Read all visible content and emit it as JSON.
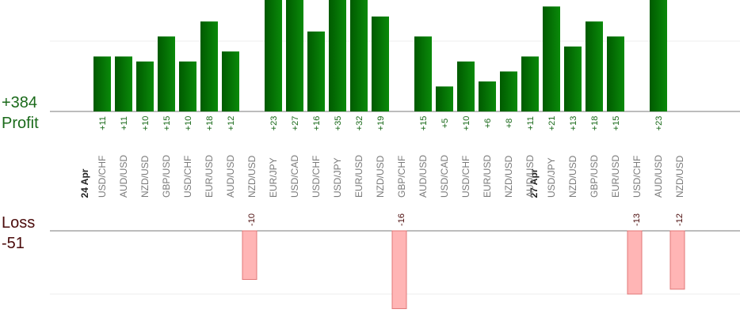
{
  "summary": {
    "profit_total": "+384",
    "profit_label": "Profit",
    "loss_label": "Loss",
    "loss_total": "-51"
  },
  "colors": {
    "profit_bar_dark": "#005a00",
    "profit_bar_light": "#0a8a0a",
    "profit_text": "#1a6a1a",
    "loss_bar_fill": "#ffb5b5",
    "loss_bar_border": "#e07878",
    "loss_text": "#4a0a0a",
    "axis_label": "#7a7a7a"
  },
  "chart_data": {
    "type": "bar",
    "profit_axis_max": 15.5,
    "loss_axis_max": 13,
    "dates": [
      {
        "label": "24 Apr",
        "slot": 0
      },
      {
        "label": "27 Apr",
        "slot": 21
      }
    ],
    "trades": [
      {
        "pair": "USD/CHF",
        "value": 11
      },
      {
        "pair": "AUD/USD",
        "value": 11
      },
      {
        "pair": "NZD/USD",
        "value": 10
      },
      {
        "pair": "GBP/USD",
        "value": 15
      },
      {
        "pair": "USD/CHF",
        "value": 10
      },
      {
        "pair": "EUR/USD",
        "value": 18
      },
      {
        "pair": "AUD/USD",
        "value": 12
      },
      {
        "pair": "NZD/USD",
        "value": -10
      },
      {
        "pair": "EUR/JPY",
        "value": 23
      },
      {
        "pair": "USD/CAD",
        "value": 27
      },
      {
        "pair": "USD/CHF",
        "value": 16
      },
      {
        "pair": "USD/JPY",
        "value": 35
      },
      {
        "pair": "EUR/USD",
        "value": 32
      },
      {
        "pair": "NZD/USD",
        "value": 19
      },
      {
        "pair": "GBP/CHF",
        "value": -16
      },
      {
        "pair": "AUD/USD",
        "value": 15
      },
      {
        "pair": "USD/CAD",
        "value": 5
      },
      {
        "pair": "USD/CHF",
        "value": 10
      },
      {
        "pair": "EUR/USD",
        "value": 6
      },
      {
        "pair": "NZD/USD",
        "value": 8
      },
      {
        "pair": "AUD/USD",
        "value": 11
      },
      {
        "pair": "USD/JPY",
        "value": 21
      },
      {
        "pair": "NZD/USD",
        "value": 13
      },
      {
        "pair": "GBP/USD",
        "value": 18
      },
      {
        "pair": "EUR/USD",
        "value": 15
      },
      {
        "pair": "USD/CHF",
        "value": -13
      },
      {
        "pair": "AUD/USD",
        "value": 23
      },
      {
        "pair": "NZD/USD",
        "value": -12
      }
    ]
  }
}
